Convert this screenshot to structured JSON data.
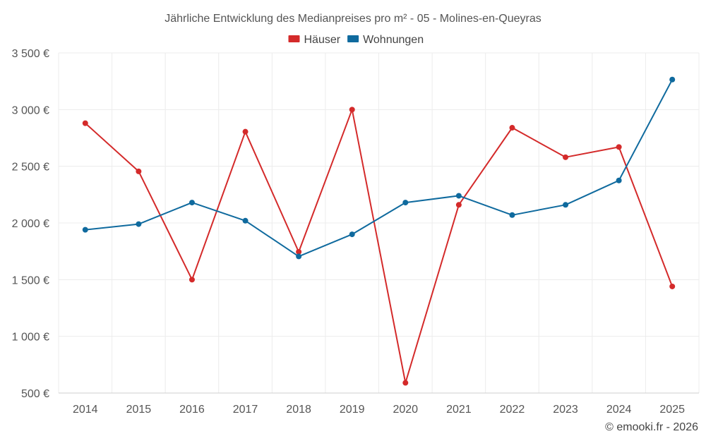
{
  "chart_data": {
    "type": "line",
    "title": "Jährliche Entwicklung des Medianpreises pro m² - 05 - Molines-en-Queyras",
    "categories": [
      "2014",
      "2015",
      "2016",
      "2017",
      "2018",
      "2019",
      "2020",
      "2021",
      "2022",
      "2023",
      "2024",
      "2025"
    ],
    "series": [
      {
        "name": "Häuser",
        "color": "#d42a2a",
        "values": [
          2880,
          2455,
          1500,
          2805,
          1745,
          3000,
          590,
          2160,
          2840,
          2580,
          2670,
          1440
        ]
      },
      {
        "name": "Wohnungen",
        "color": "#0f6a9e",
        "values": [
          1940,
          1990,
          2180,
          2020,
          1705,
          1900,
          2180,
          2240,
          2070,
          2160,
          2375,
          3265
        ]
      }
    ],
    "ylim": [
      500,
      3500
    ],
    "yticks": [
      500,
      1000,
      1500,
      2000,
      2500,
      3000,
      3500
    ],
    "ytick_labels": [
      "500 €",
      "1 000 €",
      "1 500 €",
      "2 000 €",
      "2 500 €",
      "3 000 €",
      "3 500 €"
    ],
    "grid": true,
    "legend_position": "top-center",
    "xlabel": "",
    "ylabel": ""
  },
  "credit": "© emooki.fr - 2026"
}
